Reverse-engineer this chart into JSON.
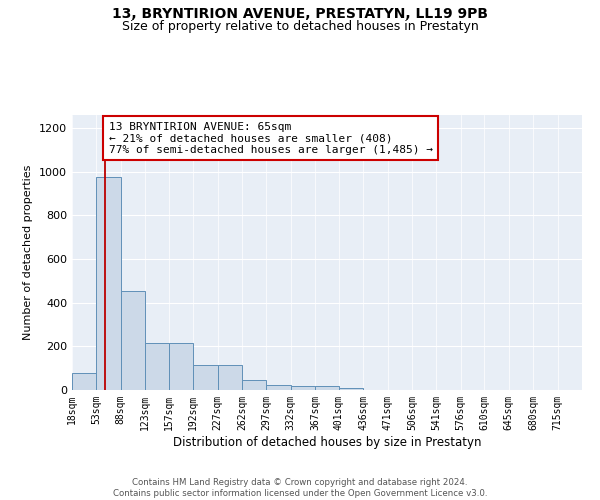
{
  "title1": "13, BRYNTIRION AVENUE, PRESTATYN, LL19 9PB",
  "title2": "Size of property relative to detached houses in Prestatyn",
  "xlabel": "Distribution of detached houses by size in Prestatyn",
  "ylabel": "Number of detached properties",
  "bar_values": [
    80,
    975,
    455,
    215,
    215,
    115,
    115,
    45,
    25,
    20,
    20,
    10,
    0,
    0,
    0,
    0,
    0,
    0,
    0,
    0
  ],
  "bin_labels": [
    "18sqm",
    "53sqm",
    "88sqm",
    "123sqm",
    "157sqm",
    "192sqm",
    "227sqm",
    "262sqm",
    "297sqm",
    "332sqm",
    "367sqm",
    "401sqm",
    "436sqm",
    "471sqm",
    "506sqm",
    "541sqm",
    "576sqm",
    "610sqm",
    "645sqm",
    "680sqm",
    "715sqm"
  ],
  "bin_edges": [
    18,
    53,
    88,
    123,
    157,
    192,
    227,
    262,
    297,
    332,
    367,
    401,
    436,
    471,
    506,
    541,
    576,
    610,
    645,
    680,
    715
  ],
  "property_line_x": 65,
  "bar_color": "#ccd9e8",
  "bar_edge_color": "#6090b8",
  "line_color": "#bb0000",
  "annotation_text": "13 BRYNTIRION AVENUE: 65sqm\n← 21% of detached houses are smaller (408)\n77% of semi-detached houses are larger (1,485) →",
  "annotation_box_color": "#ffffff",
  "annotation_box_edge": "#cc0000",
  "ylim": [
    0,
    1260
  ],
  "yticks": [
    0,
    200,
    400,
    600,
    800,
    1000,
    1200
  ],
  "background_color": "#e8eef6",
  "footer_text": "Contains HM Land Registry data © Crown copyright and database right 2024.\nContains public sector information licensed under the Open Government Licence v3.0.",
  "title_fontsize": 10,
  "subtitle_fontsize": 9,
  "annotation_fontsize": 8,
  "ylabel_fontsize": 8,
  "xlabel_fontsize": 8.5
}
